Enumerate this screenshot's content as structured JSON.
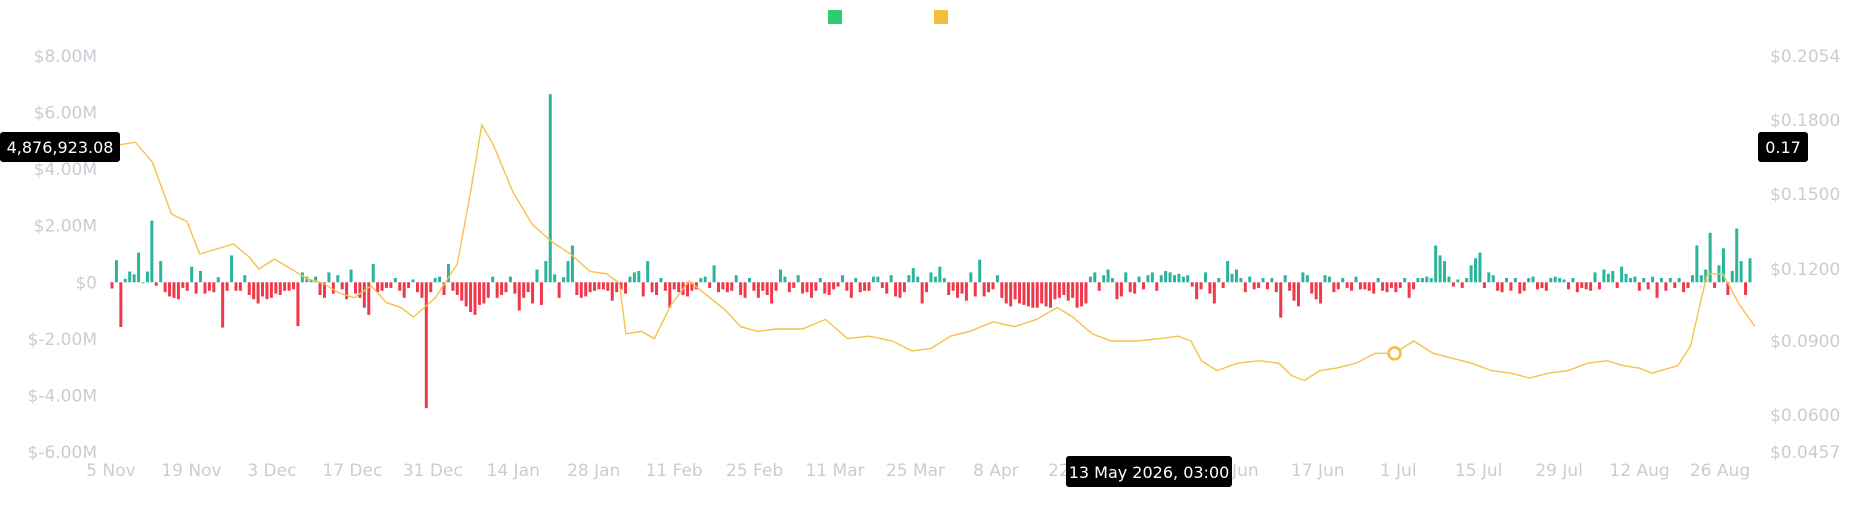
{
  "colors": {
    "positive": "#2ab59a",
    "negative": "#f0384b",
    "price_line": "#f5c24b",
    "legend_flow": "#2ecc71",
    "legend_price": "#f2be3b",
    "tick": "#c9cdd3",
    "tag_bg": "#000000"
  },
  "chart_data": {
    "type": "bar",
    "secondary_type": "line",
    "legend": {
      "placement": "top-center",
      "items": [
        {
          "color": "#2ecc71"
        },
        {
          "color": "#f2be3b"
        }
      ]
    },
    "x_tick_labels": [
      "5 Nov",
      "19 Nov",
      "3 Dec",
      "17 Dec",
      "31 Dec",
      "14 Jan",
      "28 Jan",
      "11 Feb",
      "25 Feb",
      "11 Mar",
      "25 Mar",
      "8 Apr",
      "22 Apr",
      "13 May 2026, 03:00",
      "3 Jun",
      "17 Jun",
      "1 Jul",
      "15 Jul",
      "29 Jul",
      "12 Aug",
      "26 Aug"
    ],
    "y_left_ticks": [
      "$8.00M",
      "$6.00M",
      "$4.00M",
      "$2.00M",
      "$0",
      "$-2.00M",
      "$-4.00M",
      "$-6.00M"
    ],
    "y_left_range": [
      -6000000,
      8000000
    ],
    "y_right_ticks": [
      "$0.2054",
      "$0.1800",
      "$0.1500",
      "$0.1200",
      "$0.0900",
      "$0.0600",
      "$0.0457"
    ],
    "y_right_range": [
      0.0457,
      0.2054
    ],
    "crosshair": {
      "x_label": "13 May 2026, 03:00",
      "left_value": "4,876,923.08",
      "right_value": "0.17"
    },
    "bars_millions": [
      -0.22,
      0.78,
      -1.58,
      0.12,
      0.38,
      0.28,
      1.05,
      0,
      0.38,
      2.18,
      -0.12,
      0.75,
      -0.35,
      -0.5,
      -0.55,
      -0.6,
      -0.2,
      -0.3,
      0.55,
      -0.4,
      0.4,
      -0.4,
      -0.3,
      -0.35,
      0.18,
      -1.6,
      -0.3,
      0.95,
      -0.3,
      -0.3,
      0.25,
      -0.45,
      -0.6,
      -0.75,
      -0.5,
      -0.6,
      -0.55,
      -0.4,
      -0.45,
      -0.3,
      -0.3,
      -0.25,
      -1.55,
      0.35,
      0.2,
      0.1,
      0.2,
      -0.45,
      -0.55,
      0.35,
      -0.4,
      0.25,
      -0.25,
      -0.6,
      0.45,
      -0.4,
      -0.55,
      -0.9,
      -1.15,
      0.65,
      -0.35,
      -0.3,
      -0.2,
      -0.2,
      0.15,
      -0.3,
      -0.55,
      -0.2,
      0.1,
      -0.35,
      -0.55,
      -4.45,
      -0.35,
      0.15,
      0.2,
      -0.45,
      0.65,
      -0.3,
      -0.45,
      -0.65,
      -0.85,
      -1.05,
      -1.15,
      -0.8,
      -0.75,
      -0.55,
      0.2,
      -0.55,
      -0.45,
      -0.35,
      0.2,
      -0.4,
      -1,
      -0.55,
      -0.35,
      -0.75,
      0.45,
      -0.8,
      0.75,
      6.65,
      0.28,
      -0.55,
      0.18,
      0.75,
      1.3,
      -0.45,
      -0.55,
      -0.5,
      -0.35,
      -0.3,
      -0.25,
      -0.25,
      -0.3,
      -0.65,
      -0.35,
      -0.25,
      -0.4,
      0.2,
      0.35,
      0.4,
      -0.5,
      0.75,
      -0.35,
      -0.45,
      0.15,
      -0.3,
      -0.9,
      -0.25,
      -0.35,
      -0.45,
      -0.5,
      -0.3,
      -0.25,
      0.15,
      0.2,
      -0.2,
      0.6,
      -0.35,
      -0.25,
      -0.35,
      -0.3,
      0.25,
      -0.45,
      -0.55,
      0.15,
      -0.3,
      -0.55,
      -0.3,
      -0.45,
      -0.75,
      -0.3,
      0.45,
      0.2,
      -0.35,
      -0.2,
      0.25,
      -0.4,
      -0.35,
      -0.55,
      -0.3,
      0.15,
      -0.4,
      -0.45,
      -0.25,
      -0.15,
      0.25,
      -0.3,
      -0.55,
      0.15,
      -0.35,
      -0.3,
      -0.3,
      0.2,
      0.2,
      -0.2,
      -0.4,
      0.25,
      -0.5,
      -0.55,
      -0.35,
      0.25,
      0.5,
      0.2,
      -0.75,
      -0.35,
      0.35,
      0.2,
      0.55,
      0.15,
      -0.45,
      -0.3,
      -0.55,
      -0.4,
      -0.65,
      0.35,
      -0.5,
      0.8,
      -0.5,
      -0.35,
      -0.25,
      0.25,
      -0.55,
      -0.75,
      -0.85,
      -0.6,
      -0.75,
      -0.8,
      -0.85,
      -0.9,
      -0.9,
      -0.75,
      -0.85,
      -0.9,
      -0.6,
      -0.55,
      -0.45,
      -0.65,
      -0.55,
      -0.9,
      -0.85,
      -0.75,
      0.2,
      0.35,
      -0.3,
      0.25,
      0.45,
      0.15,
      -0.6,
      -0.5,
      0.35,
      -0.35,
      -0.4,
      0.2,
      -0.25,
      0.25,
      0.35,
      -0.3,
      0.25,
      0.4,
      0.35,
      0.25,
      0.3,
      0.2,
      0.25,
      -0.15,
      -0.6,
      -0.25,
      0.35,
      -0.4,
      -0.75,
      0.15,
      -0.2,
      0.75,
      0.3,
      0.45,
      0.15,
      -0.35,
      0.2,
      -0.25,
      -0.2,
      0.15,
      -0.25,
      0.15,
      -0.35,
      -1.25,
      0.25,
      -0.3,
      -0.65,
      -0.85,
      0.35,
      0.25,
      -0.4,
      -0.6,
      -0.75,
      0.25,
      0.2,
      -0.35,
      -0.25,
      0.15,
      -0.2,
      -0.3,
      0.2,
      -0.25,
      -0.25,
      -0.3,
      -0.4,
      0.15,
      -0.3,
      -0.35,
      -0.2,
      -0.35,
      -0.2,
      0.15,
      -0.55,
      -0.25,
      0.15,
      0.15,
      0.2,
      0.15,
      1.3,
      0.95,
      0.75,
      0.2,
      -0.15,
      0.1,
      -0.2,
      0.15,
      0.6,
      0.85,
      1.05,
      -0.2,
      0.35,
      0.25,
      -0.3,
      -0.35,
      0.15,
      -0.3,
      0.15,
      -0.4,
      -0.3,
      0.15,
      0.2,
      -0.25,
      -0.2,
      -0.3,
      0.15,
      0.2,
      0.15,
      0.1,
      -0.25,
      0.15,
      -0.35,
      -0.2,
      -0.25,
      -0.3,
      0.35,
      -0.25,
      0.45,
      0.3,
      0.4,
      -0.2,
      0.55,
      0.3,
      0.15,
      0.2,
      -0.3,
      0.15,
      -0.25,
      0.2,
      -0.55,
      0.15,
      -0.3,
      0.15,
      -0.2,
      0.15,
      -0.35,
      -0.2,
      0.25,
      1.3,
      0.25,
      0.45,
      1.75,
      -0.2,
      0.6,
      1.2,
      -0.45,
      0.4,
      1.9,
      0.75,
      -0.45,
      0.85
    ],
    "price_line": [
      [
        0,
        0.17
      ],
      [
        0.012,
        0.171
      ],
      [
        0.025,
        0.163
      ],
      [
        0.04,
        0.142
      ],
      [
        0.052,
        0.139
      ],
      [
        0.062,
        0.126
      ],
      [
        0.075,
        0.128
      ],
      [
        0.088,
        0.13
      ],
      [
        0.1,
        0.125
      ],
      [
        0.108,
        0.12
      ],
      [
        0.12,
        0.124
      ],
      [
        0.133,
        0.12
      ],
      [
        0.145,
        0.116
      ],
      [
        0.158,
        0.114
      ],
      [
        0.17,
        0.11
      ],
      [
        0.182,
        0.108
      ],
      [
        0.195,
        0.113
      ],
      [
        0.207,
        0.106
      ],
      [
        0.218,
        0.104
      ],
      [
        0.228,
        0.1
      ],
      [
        0.245,
        0.108
      ],
      [
        0.262,
        0.122
      ],
      [
        0.272,
        0.15
      ],
      [
        0.281,
        0.178
      ],
      [
        0.29,
        0.17
      ],
      [
        0.305,
        0.151
      ],
      [
        0.32,
        0.138
      ],
      [
        0.335,
        0.131
      ],
      [
        0.35,
        0.126
      ],
      [
        0.365,
        0.119
      ],
      [
        0.378,
        0.118
      ],
      [
        0.388,
        0.114
      ],
      [
        0.393,
        0.093
      ],
      [
        0.405,
        0.094
      ],
      [
        0.415,
        0.091
      ],
      [
        0.428,
        0.105
      ],
      [
        0.442,
        0.115
      ],
      [
        0.456,
        0.109
      ],
      [
        0.47,
        0.103
      ],
      [
        0.482,
        0.096
      ],
      [
        0.495,
        0.094
      ],
      [
        0.51,
        0.095
      ],
      [
        0.53,
        0.095
      ],
      [
        0.548,
        0.099
      ],
      [
        0.565,
        0.091
      ],
      [
        0.582,
        0.092
      ],
      [
        0.6,
        0.09
      ],
      [
        0.615,
        0.086
      ],
      [
        0.63,
        0.087
      ],
      [
        0.645,
        0.092
      ],
      [
        0.66,
        0.094
      ],
      [
        0.678,
        0.098
      ],
      [
        0.695,
        0.096
      ],
      [
        0.712,
        0.099
      ],
      [
        0.728,
        0.104
      ],
      [
        0.74,
        0.1
      ],
      [
        0.755,
        0.093
      ],
      [
        0.77,
        0.09
      ],
      [
        0.79,
        0.09
      ],
      [
        0.808,
        0.091
      ],
      [
        0.822,
        0.092
      ],
      [
        0.832,
        0.09
      ],
      [
        0.84,
        0.082
      ],
      [
        0.852,
        0.078
      ],
      [
        0.868,
        0.081
      ],
      [
        0.885,
        0.082
      ],
      [
        0.9,
        0.081
      ],
      [
        0.91,
        0.076
      ],
      [
        0.92,
        0.074
      ],
      [
        0.932,
        0.078
      ],
      [
        0.945,
        0.079
      ],
      [
        0.96,
        0.081
      ],
      [
        0.975,
        0.085
      ],
      [
        0.99,
        0.085
      ],
      [
        1.005,
        0.09
      ],
      [
        1.02,
        0.085
      ],
      [
        1.035,
        0.083
      ],
      [
        1.05,
        0.081
      ],
      [
        1.065,
        0.078
      ],
      [
        1.08,
        0.077
      ],
      [
        1.095,
        0.075
      ],
      [
        1.11,
        0.077
      ],
      [
        1.125,
        0.078
      ],
      [
        1.14,
        0.081
      ],
      [
        1.155,
        0.082
      ],
      [
        1.168,
        0.08
      ],
      [
        1.18,
        0.079
      ],
      [
        1.19,
        0.077
      ],
      [
        1.21,
        0.08
      ],
      [
        1.22,
        0.088
      ],
      [
        1.228,
        0.107
      ],
      [
        1.233,
        0.118
      ],
      [
        1.245,
        0.118
      ],
      [
        1.258,
        0.105
      ],
      [
        1.27,
        0.096
      ]
    ],
    "crosshair_marker_index": 0.995
  }
}
